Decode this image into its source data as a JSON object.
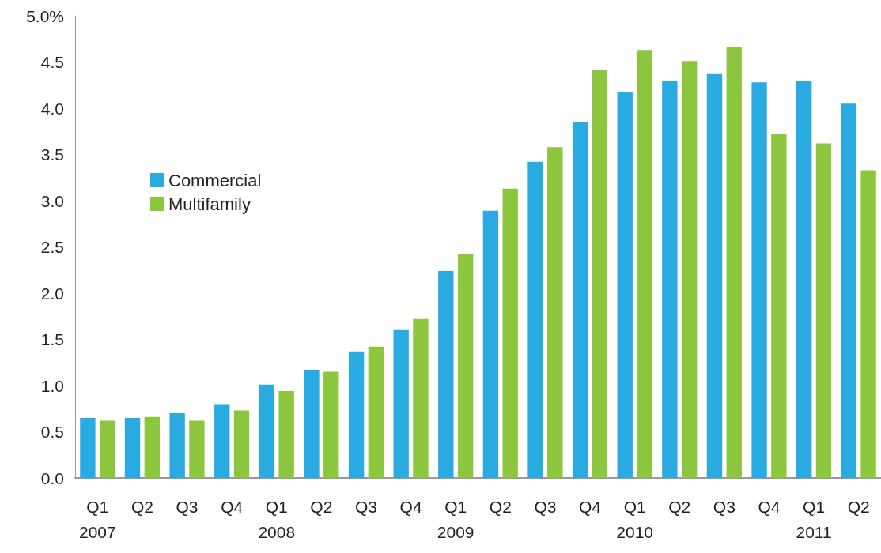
{
  "chart_data": {
    "type": "bar",
    "categories": [
      "Q1\n2007",
      "Q2",
      "Q3",
      "Q4",
      "Q1\n2008",
      "Q2",
      "Q3",
      "Q4",
      "Q1\n2009",
      "Q2",
      "Q3",
      "Q4",
      "Q1\n2010",
      "Q2",
      "Q3",
      "Q4",
      "Q1\n2011",
      "Q2"
    ],
    "series": [
      {
        "name": "Commercial",
        "color": "#29abe2",
        "values": [
          0.65,
          0.65,
          0.7,
          0.79,
          1.01,
          1.17,
          1.37,
          1.6,
          2.24,
          2.89,
          3.42,
          3.85,
          4.18,
          4.3,
          4.37,
          4.28,
          4.29,
          4.05
        ]
      },
      {
        "name": "Multifamily",
        "color": "#8cc63f",
        "values": [
          0.62,
          0.66,
          0.62,
          0.73,
          0.94,
          1.15,
          1.42,
          1.72,
          2.42,
          3.13,
          3.58,
          4.41,
          4.63,
          4.51,
          4.66,
          3.72,
          3.62,
          3.33
        ]
      }
    ],
    "ylim": [
      0,
      5
    ],
    "yticks": [
      {
        "value": 0,
        "label": "0.0"
      },
      {
        "value": 0.5,
        "label": "0.5"
      },
      {
        "value": 1,
        "label": "1.0"
      },
      {
        "value": 1.5,
        "label": "1.5"
      },
      {
        "value": 2,
        "label": "2.0"
      },
      {
        "value": 2.5,
        "label": "2.5"
      },
      {
        "value": 3,
        "label": "3.0"
      },
      {
        "value": 3.5,
        "label": "3.5"
      },
      {
        "value": 4,
        "label": "4.0"
      },
      {
        "value": 4.5,
        "label": "4.5"
      },
      {
        "value": 5,
        "label": "5.0%"
      }
    ],
    "grid": false,
    "legend": "left"
  }
}
